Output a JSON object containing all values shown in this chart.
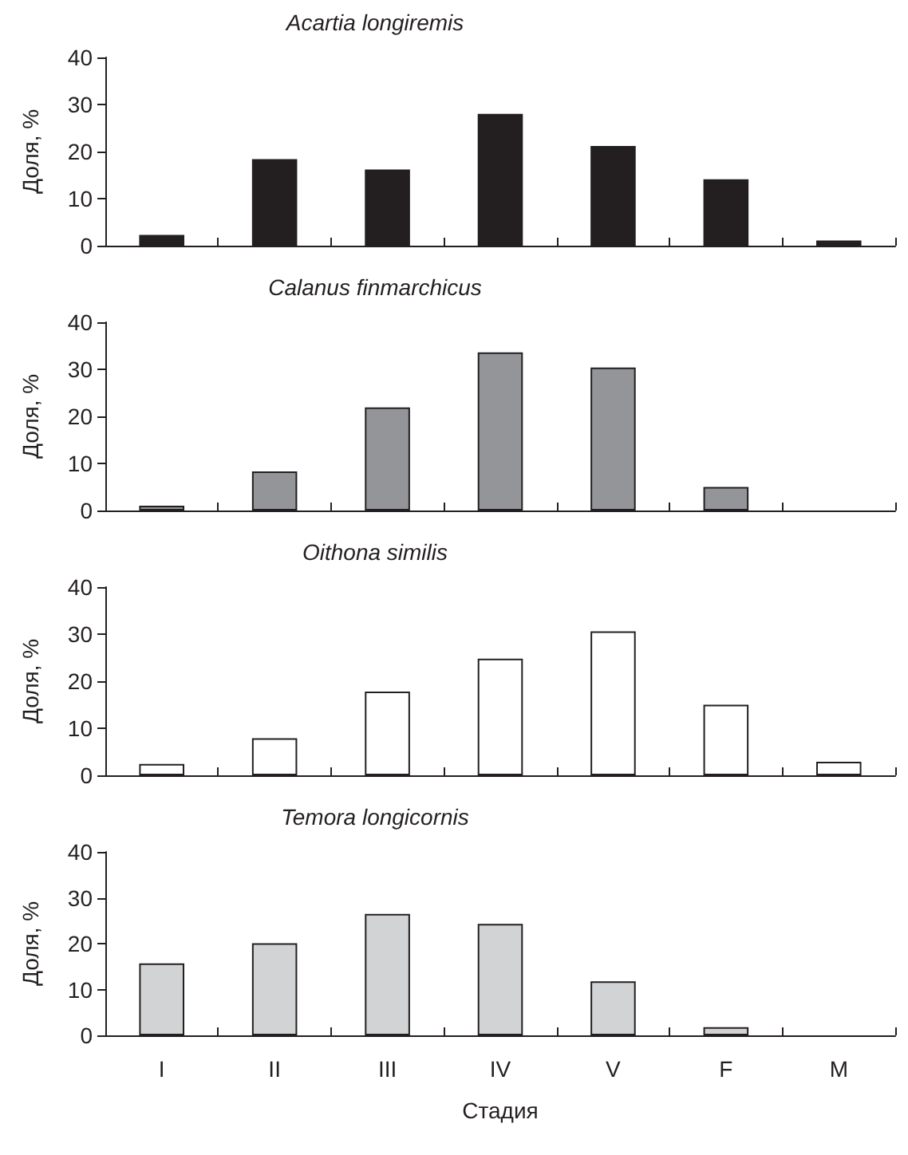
{
  "chart_data": [
    {
      "type": "bar",
      "title": "Acartia longiremis",
      "ylabel": "Доля, %",
      "categories": [
        null,
        null,
        null,
        null,
        null,
        null,
        null
      ],
      "values": [
        2.3,
        18.4,
        16.2,
        28.0,
        21.2,
        14.1,
        1.1
      ],
      "color": "#231f20",
      "ylim": [
        0,
        40
      ],
      "yticks": [
        0,
        10,
        20,
        30,
        40
      ],
      "grid": false,
      "tick_labels": "y"
    },
    {
      "type": "bar",
      "title": "Calanus finmarchicus",
      "ylabel": "Доля, %",
      "categories": [
        null,
        null,
        null,
        null,
        null,
        null,
        null
      ],
      "values": [
        1.0,
        8.3,
        21.9,
        33.6,
        30.4,
        5.0,
        0
      ],
      "color": "#939598",
      "ylim": [
        0,
        40
      ],
      "yticks": [
        0,
        10,
        20,
        30,
        40
      ],
      "grid": false,
      "tick_labels": "y"
    },
    {
      "type": "bar",
      "title": "Oithona similis",
      "ylabel": "Доля, %",
      "categories": [
        null,
        null,
        null,
        null,
        null,
        null,
        null
      ],
      "values": [
        2.4,
        7.9,
        17.8,
        24.8,
        30.6,
        15.0,
        2.9
      ],
      "color": "#ffffff",
      "ylim": [
        0,
        40
      ],
      "yticks": [
        0,
        10,
        20,
        30,
        40
      ],
      "grid": false,
      "tick_labels": "y"
    },
    {
      "type": "bar",
      "title": "Temora longicornis",
      "xlabel": "Стадия",
      "ylabel": "Доля, %",
      "categories": [
        "I",
        "II",
        "III",
        "IV",
        "V",
        "F",
        "M"
      ],
      "values": [
        15.7,
        20.1,
        26.5,
        24.3,
        11.8,
        1.8,
        0
      ],
      "color": "#d1d3d4",
      "ylim": [
        0,
        40
      ],
      "yticks": [
        0,
        10,
        20,
        30,
        40
      ],
      "grid": false
    }
  ]
}
